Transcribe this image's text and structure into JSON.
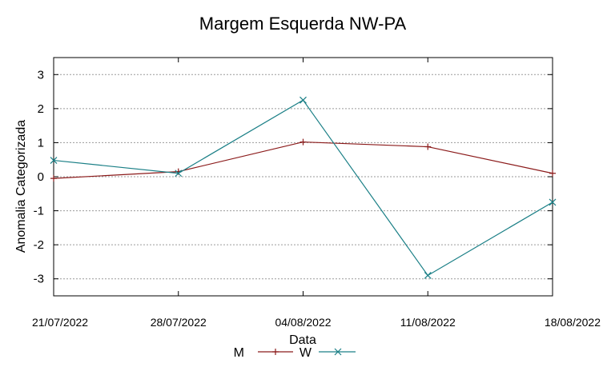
{
  "chart_data": {
    "type": "line",
    "title": "Margem Esquerda NW-PA",
    "xlabel": "Data",
    "ylabel": "Anomalia Categorizada",
    "categories": [
      "21/07/2022",
      "28/07/2022",
      "04/08/2022",
      "11/08/2022",
      "18/08/2022"
    ],
    "yticks": [
      "3",
      "2",
      "1",
      "0",
      "-1",
      "-2",
      "-3"
    ],
    "ylim": [
      -3.5,
      3.5
    ],
    "grid": true,
    "legend_position": "bottom",
    "series": [
      {
        "name": "M",
        "color": "#8b1a1a",
        "marker": "plus",
        "values": [
          -0.05,
          0.15,
          1.02,
          0.88,
          0.1
        ]
      },
      {
        "name": "W",
        "color": "#1a7f86",
        "marker": "cross",
        "values": [
          0.48,
          0.1,
          2.25,
          -2.9,
          -0.75
        ]
      }
    ]
  }
}
